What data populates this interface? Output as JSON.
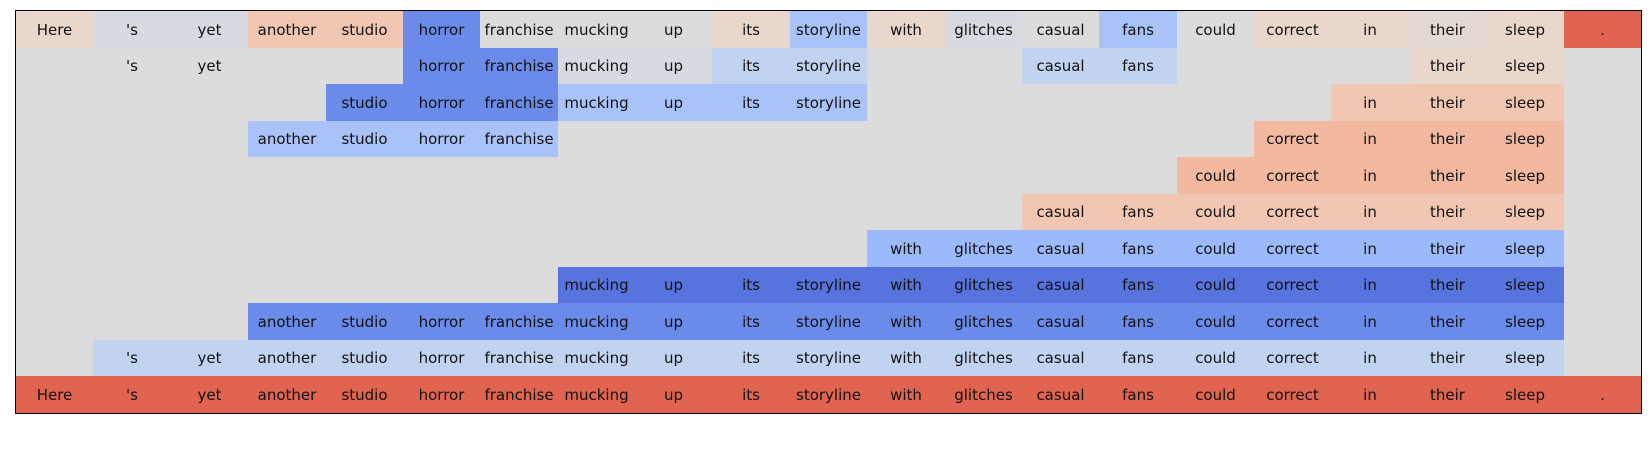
{
  "chart_data": {
    "type": "heatmap",
    "title": "",
    "xlabel": "",
    "ylabel": "",
    "grid": false,
    "legend": "none",
    "tokens": [
      "Here",
      "'s",
      "yet",
      "another",
      "studio",
      "horror",
      "franchise",
      "mucking",
      "up",
      "its",
      "storyline",
      "with",
      "glitches",
      "casual",
      "fans",
      "could",
      "correct",
      "in",
      "their",
      "sleep",
      "."
    ],
    "background_color": "#dcdcdc",
    "colors": {
      "r4": "#e0644f",
      "r3": "#f2b9a0",
      "r2": "#f1c6b2",
      "r1": "#e9d6cc",
      "r0": "#e3d9d3",
      "n0": "#d7dae0",
      "b1": "#c2d3f2",
      "b2": "#a9c2f8",
      "b3": "#9bb9fb",
      "b4": "#6a8bea",
      "b5": "#5773de"
    },
    "rows": [
      {
        "spans": [
          [
            0,
            20
          ]
        ],
        "shades": [
          "r1",
          "n0",
          "n0",
          "r2",
          "r2",
          "b4",
          "",
          "",
          "",
          "r1",
          "b2",
          "r1",
          "n0",
          "",
          "b2",
          "",
          "r1",
          "r1",
          "r0",
          "r1",
          "r4"
        ]
      },
      {
        "spans": [
          [
            1,
            2
          ],
          [
            5,
            10
          ],
          [
            13,
            14
          ],
          [
            18,
            19
          ]
        ],
        "shades": [
          "",
          "",
          "",
          "",
          "",
          "b4",
          "b4",
          "n0",
          "n0",
          "b1",
          "b1",
          "",
          "",
          "b1",
          "b1",
          "",
          "",
          "",
          "r1",
          "r1",
          ""
        ]
      },
      {
        "spans": [
          [
            4,
            10
          ],
          [
            17,
            19
          ]
        ],
        "shades": [
          "",
          "",
          "",
          "",
          "b4",
          "b4",
          "b4",
          "b2",
          "b2",
          "b2",
          "b2",
          "",
          "",
          "",
          "",
          "",
          "",
          "r2",
          "r2",
          "r2",
          ""
        ]
      },
      {
        "spans": [
          [
            3,
            6
          ],
          [
            16,
            19
          ]
        ],
        "shades": [
          "",
          "",
          "",
          "b2",
          "b2",
          "b2",
          "b2",
          "",
          "",
          "",
          "",
          "",
          "",
          "",
          "",
          "",
          "r3",
          "r3",
          "r3",
          "r3",
          ""
        ]
      },
      {
        "spans": [
          [
            15,
            19
          ]
        ],
        "shades": [
          "",
          "",
          "",
          "",
          "",
          "",
          "",
          "",
          "",
          "",
          "",
          "",
          "",
          "",
          "",
          "r3",
          "r3",
          "r3",
          "r3",
          "r3",
          ""
        ]
      },
      {
        "spans": [
          [
            13,
            19
          ]
        ],
        "shades": [
          "",
          "",
          "",
          "",
          "",
          "",
          "",
          "",
          "",
          "",
          "",
          "",
          "",
          "r2",
          "r2",
          "r2",
          "r2",
          "r2",
          "r2",
          "r2",
          ""
        ]
      },
      {
        "spans": [
          [
            11,
            19
          ]
        ],
        "shades": [
          "",
          "",
          "",
          "",
          "",
          "",
          "",
          "",
          "",
          "",
          "",
          "b3",
          "b3",
          "b3",
          "b3",
          "b3",
          "b3",
          "b3",
          "b3",
          "b3",
          ""
        ]
      },
      {
        "spans": [
          [
            7,
            19
          ]
        ],
        "shades": [
          "",
          "",
          "",
          "",
          "",
          "",
          "",
          "b5",
          "b5",
          "b5",
          "b5",
          "b5",
          "b5",
          "b5",
          "b5",
          "b5",
          "b5",
          "b5",
          "b5",
          "b5",
          ""
        ]
      },
      {
        "spans": [
          [
            3,
            19
          ]
        ],
        "shades": [
          "",
          "",
          "",
          "b4",
          "b4",
          "b4",
          "b4",
          "b4",
          "b4",
          "b4",
          "b4",
          "b4",
          "b4",
          "b4",
          "b4",
          "b4",
          "b4",
          "b4",
          "b4",
          "b4",
          ""
        ]
      },
      {
        "spans": [
          [
            1,
            19
          ]
        ],
        "shades": [
          "",
          "b1",
          "b1",
          "b1",
          "b1",
          "b1",
          "b1",
          "b1",
          "b1",
          "b1",
          "b1",
          "b1",
          "b1",
          "b1",
          "b1",
          "b1",
          "b1",
          "b1",
          "b1",
          "b1",
          ""
        ]
      },
      {
        "spans": [
          [
            0,
            20
          ]
        ],
        "shades": [
          "r4",
          "r4",
          "r4",
          "r4",
          "r4",
          "r4",
          "r4",
          "r4",
          "r4",
          "r4",
          "r4",
          "r4",
          "r4",
          "r4",
          "r4",
          "r4",
          "r4",
          "r4",
          "r4",
          "r4",
          "r4"
        ]
      }
    ]
  }
}
